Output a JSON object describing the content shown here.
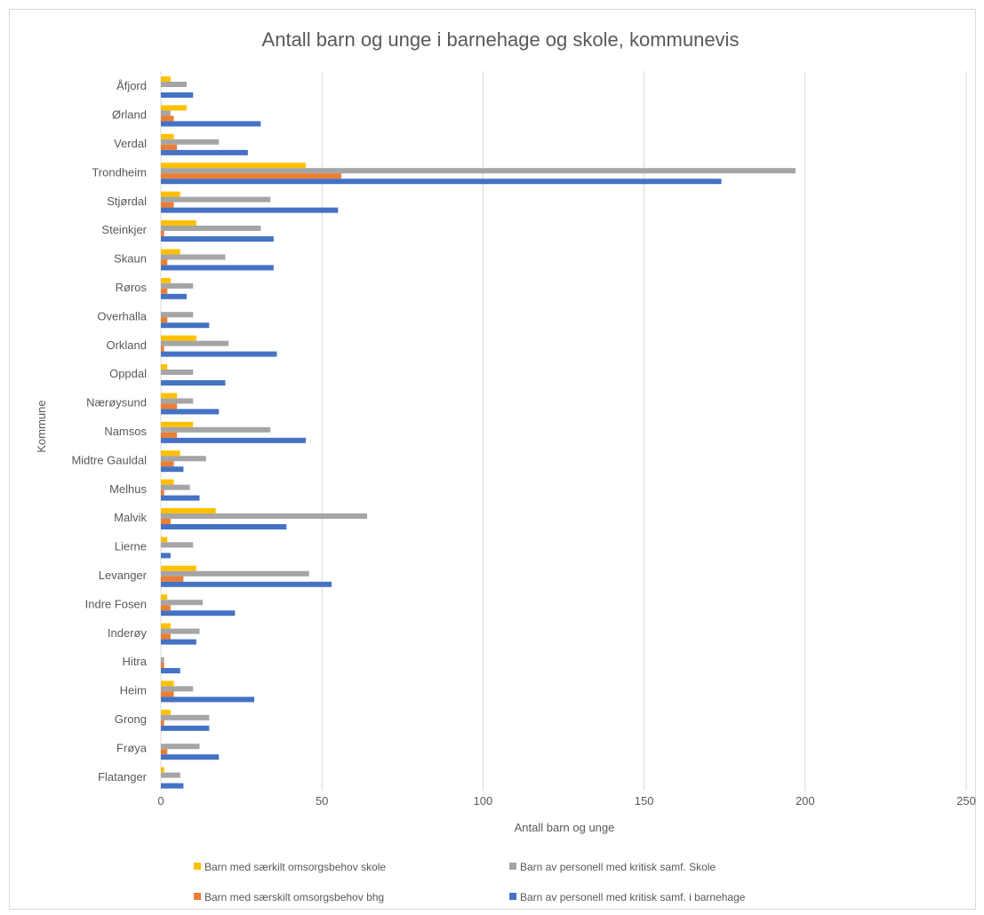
{
  "chart_data": {
    "type": "bar",
    "orientation": "horizontal",
    "title": "Antall barn og unge i barnehage og skole, kommunevis",
    "xlabel": "Antall barn og unge",
    "ylabel": "Kommune",
    "xlim": [
      0,
      250
    ],
    "xticks": [
      "0",
      "50",
      "100",
      "150",
      "200",
      "250"
    ],
    "grid": "vertical",
    "legend_position": "bottom",
    "categories": [
      "Åfjord",
      "Ørland",
      "Verdal",
      "Trondheim",
      "Stjørdal",
      "Steinkjer",
      "Skaun",
      "Røros",
      "Overhalla",
      "Orkland",
      "Oppdal",
      "Nærøysund",
      "Namsos",
      "Midtre Gauldal",
      "Melhus",
      "Malvik",
      "Lierne",
      "Levanger",
      "Indre Fosen",
      "Inderøy",
      "Hitra",
      "Heim",
      "Grong",
      "Frøya",
      "Flatanger"
    ],
    "series": [
      {
        "name": "Barn med særkilt omsorgsbehov skole",
        "color": "#FFC000",
        "values": [
          3,
          8,
          4,
          45,
          6,
          11,
          6,
          3,
          0,
          11,
          2,
          5,
          10,
          6,
          4,
          17,
          2,
          11,
          2,
          3,
          0,
          4,
          3,
          0,
          1
        ]
      },
      {
        "name": "Barn av personell med kritisk samf. Skole",
        "color": "#A5A5A5",
        "values": [
          8,
          3,
          18,
          197,
          34,
          31,
          20,
          10,
          10,
          21,
          10,
          10,
          34,
          14,
          9,
          64,
          10,
          46,
          13,
          12,
          1,
          10,
          15,
          12,
          6
        ]
      },
      {
        "name": "Barn med særskilt omsorgsbehov bhg",
        "color": "#ED7D31",
        "values": [
          0,
          4,
          5,
          56,
          4,
          1,
          2,
          2,
          2,
          1,
          0,
          5,
          5,
          4,
          1,
          3,
          0,
          7,
          3,
          3,
          1,
          4,
          1,
          2,
          0
        ]
      },
      {
        "name": "Barn av personell med kritisk samf. i barnehage",
        "color": "#4472C4",
        "values": [
          10,
          31,
          27,
          174,
          55,
          35,
          35,
          8,
          15,
          36,
          20,
          18,
          45,
          7,
          12,
          39,
          3,
          53,
          23,
          11,
          6,
          29,
          15,
          18,
          7
        ]
      }
    ]
  }
}
